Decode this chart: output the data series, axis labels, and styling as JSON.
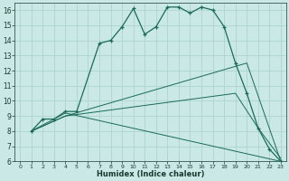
{
  "xlabel": "Humidex (Indice chaleur)",
  "xlim": [
    -0.5,
    23.5
  ],
  "ylim": [
    6,
    16.5
  ],
  "xticks": [
    0,
    1,
    2,
    3,
    4,
    5,
    6,
    7,
    8,
    9,
    10,
    11,
    12,
    13,
    14,
    15,
    16,
    17,
    18,
    19,
    20,
    21,
    22,
    23
  ],
  "yticks": [
    6,
    7,
    8,
    9,
    10,
    11,
    12,
    13,
    14,
    15,
    16
  ],
  "background_color": "#c9e8e6",
  "grid_color": "#a8d0cc",
  "line_color": "#1a6b5a",
  "line1_x": [
    1,
    2,
    3,
    4,
    5,
    7,
    8,
    9,
    10,
    11,
    12,
    13,
    14,
    15,
    16,
    17,
    18,
    19,
    20,
    21,
    22,
    23
  ],
  "line1_y": [
    8.0,
    8.8,
    8.8,
    9.3,
    9.3,
    13.8,
    14.0,
    14.9,
    16.1,
    14.4,
    14.9,
    16.2,
    16.2,
    15.8,
    16.2,
    16.0,
    14.9,
    12.5,
    10.5,
    8.2,
    6.8,
    6.0
  ],
  "line2_x": [
    1,
    4,
    23
  ],
  "line2_y": [
    8.0,
    9.2,
    6.0
  ],
  "line3_x": [
    1,
    4,
    19,
    21,
    23
  ],
  "line3_y": [
    8.0,
    9.0,
    10.5,
    8.2,
    6.2
  ],
  "line4_x": [
    1,
    4,
    20,
    23
  ],
  "line4_y": [
    8.0,
    9.0,
    12.5,
    6.0
  ]
}
